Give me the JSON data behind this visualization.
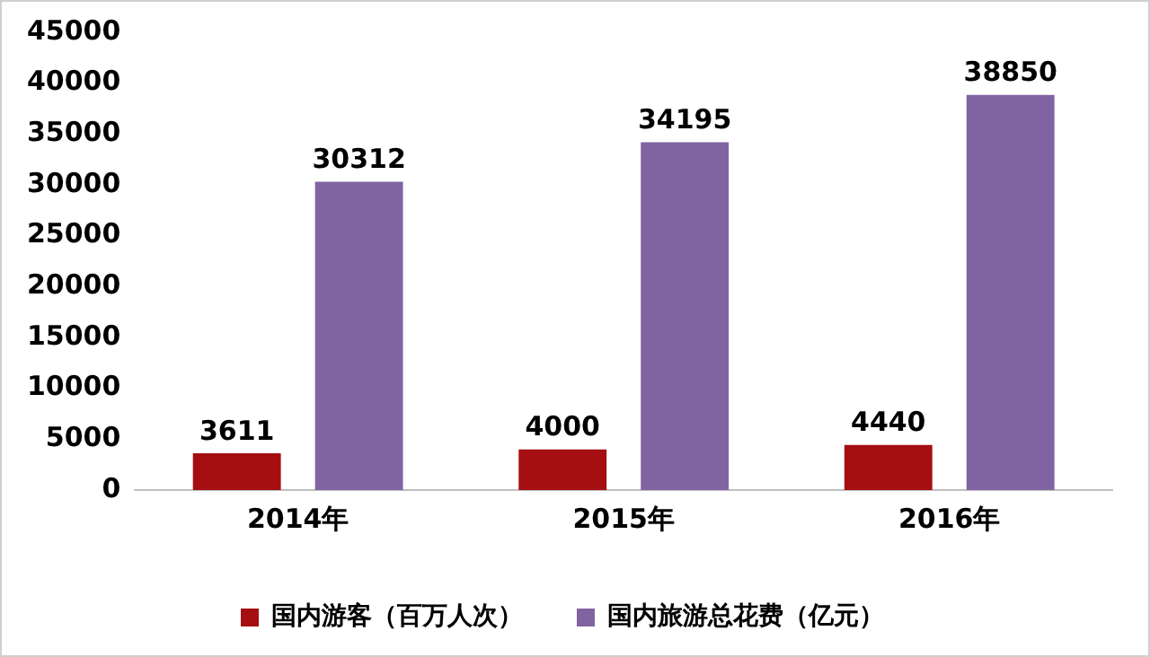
{
  "chart_data": {
    "type": "bar",
    "categories": [
      "2014年",
      "2015年",
      "2016年"
    ],
    "series": [
      {
        "name": "国内游客（百万人次）",
        "color": "#a50f12",
        "values": [
          3611,
          4000,
          4440
        ]
      },
      {
        "name": "国内旅游总花费（亿元）",
        "color": "#8064a2",
        "values": [
          30312,
          34195,
          38850
        ]
      }
    ],
    "ylim": [
      0,
      45000
    ],
    "yticks": [
      0,
      5000,
      10000,
      15000,
      20000,
      25000,
      30000,
      35000,
      40000,
      45000
    ],
    "grid": false,
    "legend": "bottom",
    "data_labels": true
  }
}
